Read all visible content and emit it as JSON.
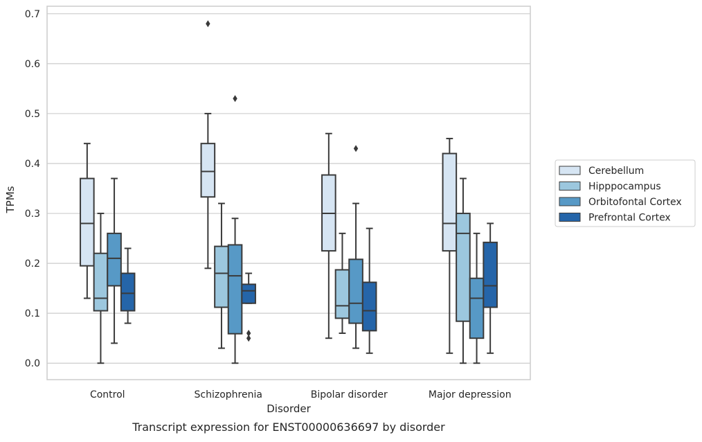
{
  "chart_data": {
    "type": "box",
    "caption": "Transcript expression for ENST00000636697 by disorder",
    "xlabel": "Disorder",
    "ylabel": "TPMs",
    "ylim": [
      -0.033,
      0.715
    ],
    "yticks": [
      0.0,
      0.1,
      0.2,
      0.3,
      0.4,
      0.5,
      0.6,
      0.7
    ],
    "ytick_labels": [
      "0.0",
      "0.1",
      "0.2",
      "0.3",
      "0.4",
      "0.5",
      "0.6",
      "0.7"
    ],
    "grid": "horizontal",
    "legend_position": "right-outside",
    "categories": [
      "Control",
      "Schizophrenia",
      "Bipolar disorder",
      "Major depression"
    ],
    "series": [
      {
        "name": "Cerebellum",
        "color": "#d6e5f3",
        "boxes": [
          {
            "whisker_low": 0.13,
            "q1": 0.195,
            "median": 0.28,
            "q3": 0.37,
            "whisker_high": 0.44,
            "outliers": []
          },
          {
            "whisker_low": 0.19,
            "q1": 0.333,
            "median": 0.384,
            "q3": 0.44,
            "whisker_high": 0.5,
            "outliers": [
              0.68
            ]
          },
          {
            "whisker_low": 0.05,
            "q1": 0.225,
            "median": 0.3,
            "q3": 0.377,
            "whisker_high": 0.46,
            "outliers": []
          },
          {
            "whisker_low": 0.02,
            "q1": 0.225,
            "median": 0.28,
            "q3": 0.42,
            "whisker_high": 0.45,
            "outliers": []
          }
        ]
      },
      {
        "name": "Hipppocampus",
        "color": "#9cc7de",
        "boxes": [
          {
            "whisker_low": 0.0,
            "q1": 0.105,
            "median": 0.13,
            "q3": 0.22,
            "whisker_high": 0.3,
            "outliers": []
          },
          {
            "whisker_low": 0.03,
            "q1": 0.112,
            "median": 0.18,
            "q3": 0.234,
            "whisker_high": 0.32,
            "outliers": []
          },
          {
            "whisker_low": 0.06,
            "q1": 0.09,
            "median": 0.115,
            "q3": 0.187,
            "whisker_high": 0.26,
            "outliers": []
          },
          {
            "whisker_low": 0.0,
            "q1": 0.084,
            "median": 0.26,
            "q3": 0.3,
            "whisker_high": 0.37,
            "outliers": []
          }
        ]
      },
      {
        "name": "Orbitofontal Cortex",
        "color": "#5799c6",
        "boxes": [
          {
            "whisker_low": 0.04,
            "q1": 0.155,
            "median": 0.21,
            "q3": 0.26,
            "whisker_high": 0.37,
            "outliers": []
          },
          {
            "whisker_low": 0.0,
            "q1": 0.059,
            "median": 0.175,
            "q3": 0.237,
            "whisker_high": 0.29,
            "outliers": [
              0.53
            ]
          },
          {
            "whisker_low": 0.03,
            "q1": 0.08,
            "median": 0.12,
            "q3": 0.208,
            "whisker_high": 0.32,
            "outliers": [
              0.43
            ]
          },
          {
            "whisker_low": 0.0,
            "q1": 0.05,
            "median": 0.13,
            "q3": 0.17,
            "whisker_high": 0.26,
            "outliers": []
          }
        ]
      },
      {
        "name": "Prefrontal Cortex",
        "color": "#2565a9",
        "boxes": [
          {
            "whisker_low": 0.08,
            "q1": 0.105,
            "median": 0.14,
            "q3": 0.18,
            "whisker_high": 0.23,
            "outliers": []
          },
          {
            "whisker_low": 0.12,
            "q1": 0.12,
            "median": 0.145,
            "q3": 0.158,
            "whisker_high": 0.18,
            "outliers": [
              0.06,
              0.05
            ]
          },
          {
            "whisker_low": 0.02,
            "q1": 0.065,
            "median": 0.105,
            "q3": 0.162,
            "whisker_high": 0.27,
            "outliers": []
          },
          {
            "whisker_low": 0.02,
            "q1": 0.112,
            "median": 0.155,
            "q3": 0.242,
            "whisker_high": 0.28,
            "outliers": []
          }
        ]
      }
    ]
  }
}
